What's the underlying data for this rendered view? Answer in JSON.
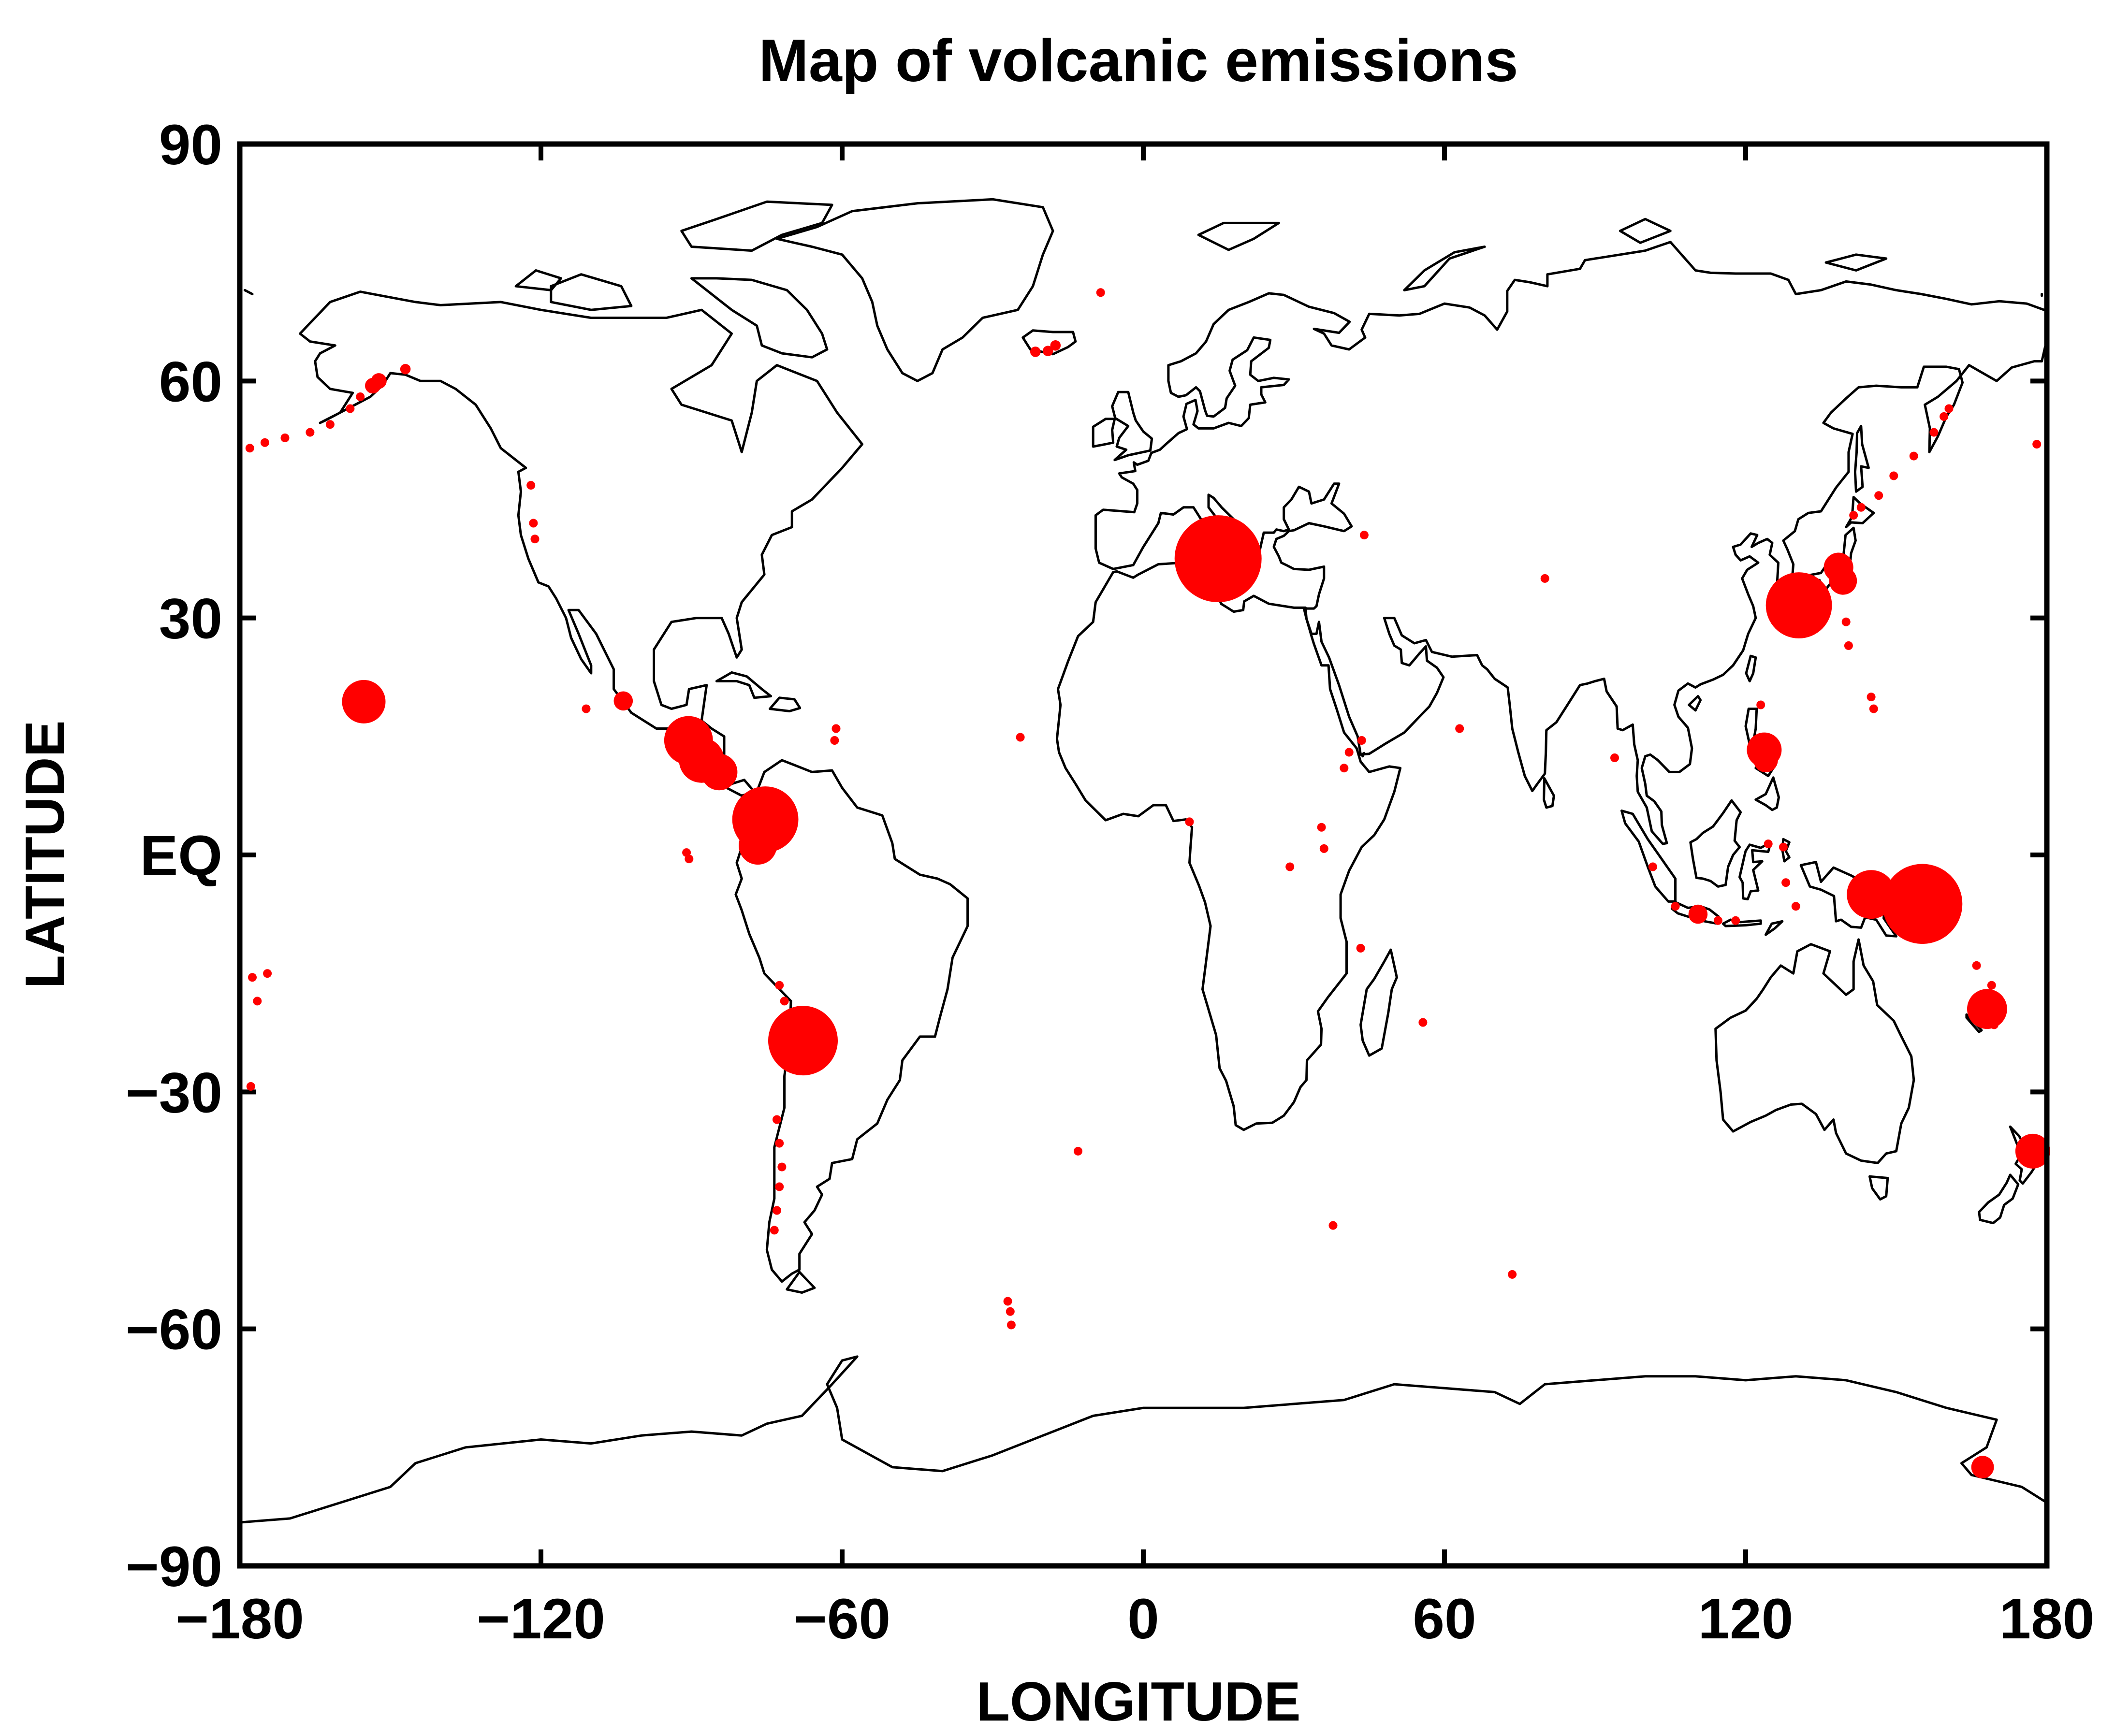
{
  "chart_data": {
    "type": "scatter",
    "title": "Map of volcanic emissions",
    "xlabel": "LONGITUDE",
    "ylabel": "LATITUDE",
    "xlim": [
      -180,
      180
    ],
    "ylim": [
      -90,
      90
    ],
    "xticks": [
      -180,
      -120,
      -60,
      0,
      60,
      120,
      180
    ],
    "yticks": [
      90,
      60,
      30,
      0,
      -30,
      -60,
      -90
    ],
    "xtick_labels": [
      "−180",
      "−120",
      "−60",
      "0",
      "60",
      "120",
      "180"
    ],
    "ytick_labels": [
      "90",
      "60",
      "30",
      "EQ",
      "−30",
      "−60",
      "−90"
    ],
    "grid": false,
    "legend": "none",
    "marker_color": "#ff0000",
    "background": "coastline map",
    "series": [
      {
        "points": [
          {
            "lon": 14.9,
            "lat": 37.5,
            "size": 5
          },
          {
            "lon": 155.2,
            "lat": -6.2,
            "size": 4.6
          },
          {
            "lon": -67.8,
            "lat": -23.5,
            "size": 4
          },
          {
            "lon": -75.3,
            "lat": 4.5,
            "size": 3.8
          },
          {
            "lon": 130.6,
            "lat": 31.6,
            "size": 3.8
          },
          {
            "lon": 145.0,
            "lat": -5.0,
            "size": 2.8
          },
          {
            "lon": -90.6,
            "lat": 14.5,
            "size": 2.8
          },
          {
            "lon": -88.0,
            "lat": 12.0,
            "size": 2.6
          },
          {
            "lon": -155.3,
            "lat": 19.4,
            "size": 2.5
          },
          {
            "lon": 168.1,
            "lat": -19.5,
            "size": 2.3
          },
          {
            "lon": -76.8,
            "lat": 1.2,
            "size": 2.2
          },
          {
            "lon": -84.5,
            "lat": 10.5,
            "size": 2.1
          },
          {
            "lon": 123.7,
            "lat": 13.3,
            "size": 2
          },
          {
            "lon": 177.2,
            "lat": -37.5,
            "size": 2
          },
          {
            "lon": 138.5,
            "lat": 36.4,
            "size": 1.7
          },
          {
            "lon": 139.4,
            "lat": 34.7,
            "size": 1.6
          },
          {
            "lon": 124.0,
            "lat": 12.0,
            "size": 1.4
          },
          {
            "lon": 167.2,
            "lat": -77.5,
            "size": 1.3
          },
          {
            "lon": 110.5,
            "lat": -7.5,
            "size": 1.1
          },
          {
            "lon": -103.6,
            "lat": 19.5,
            "size": 1.1
          },
          {
            "lon": -152.3,
            "lat": 60.0,
            "size": 0.9
          },
          {
            "lon": -153.5,
            "lat": 59.4,
            "size": 0.9
          },
          {
            "lon": -147.0,
            "lat": 61.5,
            "size": 0.6
          },
          {
            "lon": -171.0,
            "lat": 52.8,
            "size": 0.5
          },
          {
            "lon": -166.0,
            "lat": 53.5,
            "size": 0.5
          },
          {
            "lon": -162.0,
            "lat": 54.5,
            "size": 0.5
          },
          {
            "lon": -158.0,
            "lat": 56.5,
            "size": 0.5
          },
          {
            "lon": -156.0,
            "lat": 58.0,
            "size": 0.5
          },
          {
            "lon": -178.0,
            "lat": 51.5,
            "size": 0.5
          },
          {
            "lon": -175.0,
            "lat": 52.2,
            "size": 0.5
          },
          {
            "lon": -122.0,
            "lat": 46.8,
            "size": 0.5
          },
          {
            "lon": -121.5,
            "lat": 42.0,
            "size": 0.5
          },
          {
            "lon": -121.2,
            "lat": 40.0,
            "size": 0.5
          },
          {
            "lon": -111.0,
            "lat": 18.5,
            "size": 0.5
          },
          {
            "lon": -91.0,
            "lat": 0.3,
            "size": 0.5
          },
          {
            "lon": -90.5,
            "lat": -0.5,
            "size": 0.5
          },
          {
            "lon": -72.5,
            "lat": -16.5,
            "size": 0.5
          },
          {
            "lon": -71.5,
            "lat": -18.5,
            "size": 0.5
          },
          {
            "lon": -70.5,
            "lat": -21.0,
            "size": 0.5
          },
          {
            "lon": -73.0,
            "lat": -33.5,
            "size": 0.5
          },
          {
            "lon": -72.5,
            "lat": -36.5,
            "size": 0.5
          },
          {
            "lon": -72.0,
            "lat": -39.5,
            "size": 0.5
          },
          {
            "lon": -72.5,
            "lat": -42.0,
            "size": 0.5
          },
          {
            "lon": -73.0,
            "lat": -45.0,
            "size": 0.5
          },
          {
            "lon": -73.5,
            "lat": -47.5,
            "size": 0.5
          },
          {
            "lon": -61.2,
            "lat": 16.0,
            "size": 0.5
          },
          {
            "lon": -61.5,
            "lat": 14.5,
            "size": 0.5
          },
          {
            "lon": -19.0,
            "lat": 63.8,
            "size": 0.6
          },
          {
            "lon": -17.5,
            "lat": 64.5,
            "size": 0.6
          },
          {
            "lon": -21.5,
            "lat": 63.7,
            "size": 0.6
          },
          {
            "lon": -8.5,
            "lat": 71.2,
            "size": 0.5
          },
          {
            "lon": -24.5,
            "lat": 14.9,
            "size": 0.5
          },
          {
            "lon": -13.0,
            "lat": -37.5,
            "size": 0.5
          },
          {
            "lon": -27.0,
            "lat": -56.5,
            "size": 0.5
          },
          {
            "lon": -26.5,
            "lat": -57.8,
            "size": 0.5
          },
          {
            "lon": -26.3,
            "lat": -59.5,
            "size": 0.5
          },
          {
            "lon": 9.2,
            "lat": 4.2,
            "size": 0.5
          },
          {
            "lon": 29.2,
            "lat": -1.5,
            "size": 0.5
          },
          {
            "lon": 36.0,
            "lat": 0.8,
            "size": 0.5
          },
          {
            "lon": 35.5,
            "lat": 3.5,
            "size": 0.5
          },
          {
            "lon": 41.0,
            "lat": 13.0,
            "size": 0.5
          },
          {
            "lon": 40.0,
            "lat": 11.0,
            "size": 0.5
          },
          {
            "lon": 43.5,
            "lat": 14.5,
            "size": 0.5
          },
          {
            "lon": 44.0,
            "lat": 40.5,
            "size": 0.5
          },
          {
            "lon": 43.3,
            "lat": -11.8,
            "size": 0.5
          },
          {
            "lon": 55.7,
            "lat": -21.2,
            "size": 0.5
          },
          {
            "lon": 37.8,
            "lat": -46.9,
            "size": 0.5
          },
          {
            "lon": 73.5,
            "lat": -53.1,
            "size": 0.5
          },
          {
            "lon": 63.0,
            "lat": 16.0,
            "size": 0.5
          },
          {
            "lon": 80.0,
            "lat": 35.0,
            "size": 0.5
          },
          {
            "lon": 93.9,
            "lat": 12.3,
            "size": 0.5
          },
          {
            "lon": 101.5,
            "lat": -1.5,
            "size": 0.5
          },
          {
            "lon": 106.0,
            "lat": -6.5,
            "size": 0.5
          },
          {
            "lon": 114.5,
            "lat": -8.3,
            "size": 0.5
          },
          {
            "lon": 118.0,
            "lat": -8.3,
            "size": 0.5
          },
          {
            "lon": 124.5,
            "lat": 1.4,
            "size": 0.5
          },
          {
            "lon": 127.5,
            "lat": 1.0,
            "size": 0.5
          },
          {
            "lon": 128.0,
            "lat": -3.5,
            "size": 0.5
          },
          {
            "lon": 130.0,
            "lat": -6.5,
            "size": 0.5
          },
          {
            "lon": 123.0,
            "lat": 19.0,
            "size": 0.5
          },
          {
            "lon": 141.5,
            "lat": 43.0,
            "size": 0.5
          },
          {
            "lon": 143.0,
            "lat": 44.0,
            "size": 0.5
          },
          {
            "lon": 146.5,
            "lat": 45.5,
            "size": 0.5
          },
          {
            "lon": 149.5,
            "lat": 48.0,
            "size": 0.5
          },
          {
            "lon": 153.5,
            "lat": 50.5,
            "size": 0.5
          },
          {
            "lon": 157.5,
            "lat": 53.5,
            "size": 0.5
          },
          {
            "lon": 159.5,
            "lat": 55.5,
            "size": 0.5
          },
          {
            "lon": 160.5,
            "lat": 56.5,
            "size": 0.5
          },
          {
            "lon": 140.0,
            "lat": 29.5,
            "size": 0.5
          },
          {
            "lon": 140.5,
            "lat": 26.5,
            "size": 0.5
          },
          {
            "lon": 145.0,
            "lat": 20.0,
            "size": 0.5
          },
          {
            "lon": 145.5,
            "lat": 18.5,
            "size": 0.5
          },
          {
            "lon": 166.0,
            "lat": -14.0,
            "size": 0.5
          },
          {
            "lon": 169.0,
            "lat": -16.5,
            "size": 0.5
          },
          {
            "lon": 169.5,
            "lat": -21.5,
            "size": 0.5
          },
          {
            "lon": 178.0,
            "lat": 52.0,
            "size": 0.5
          },
          {
            "lon": -177.5,
            "lat": -15.5,
            "size": 0.5
          },
          {
            "lon": -176.5,
            "lat": -18.5,
            "size": 0.5
          },
          {
            "lon": -174.5,
            "lat": -15.0,
            "size": 0.5
          },
          {
            "lon": -177.8,
            "lat": -29.3,
            "size": 0.5
          }
        ]
      }
    ]
  }
}
